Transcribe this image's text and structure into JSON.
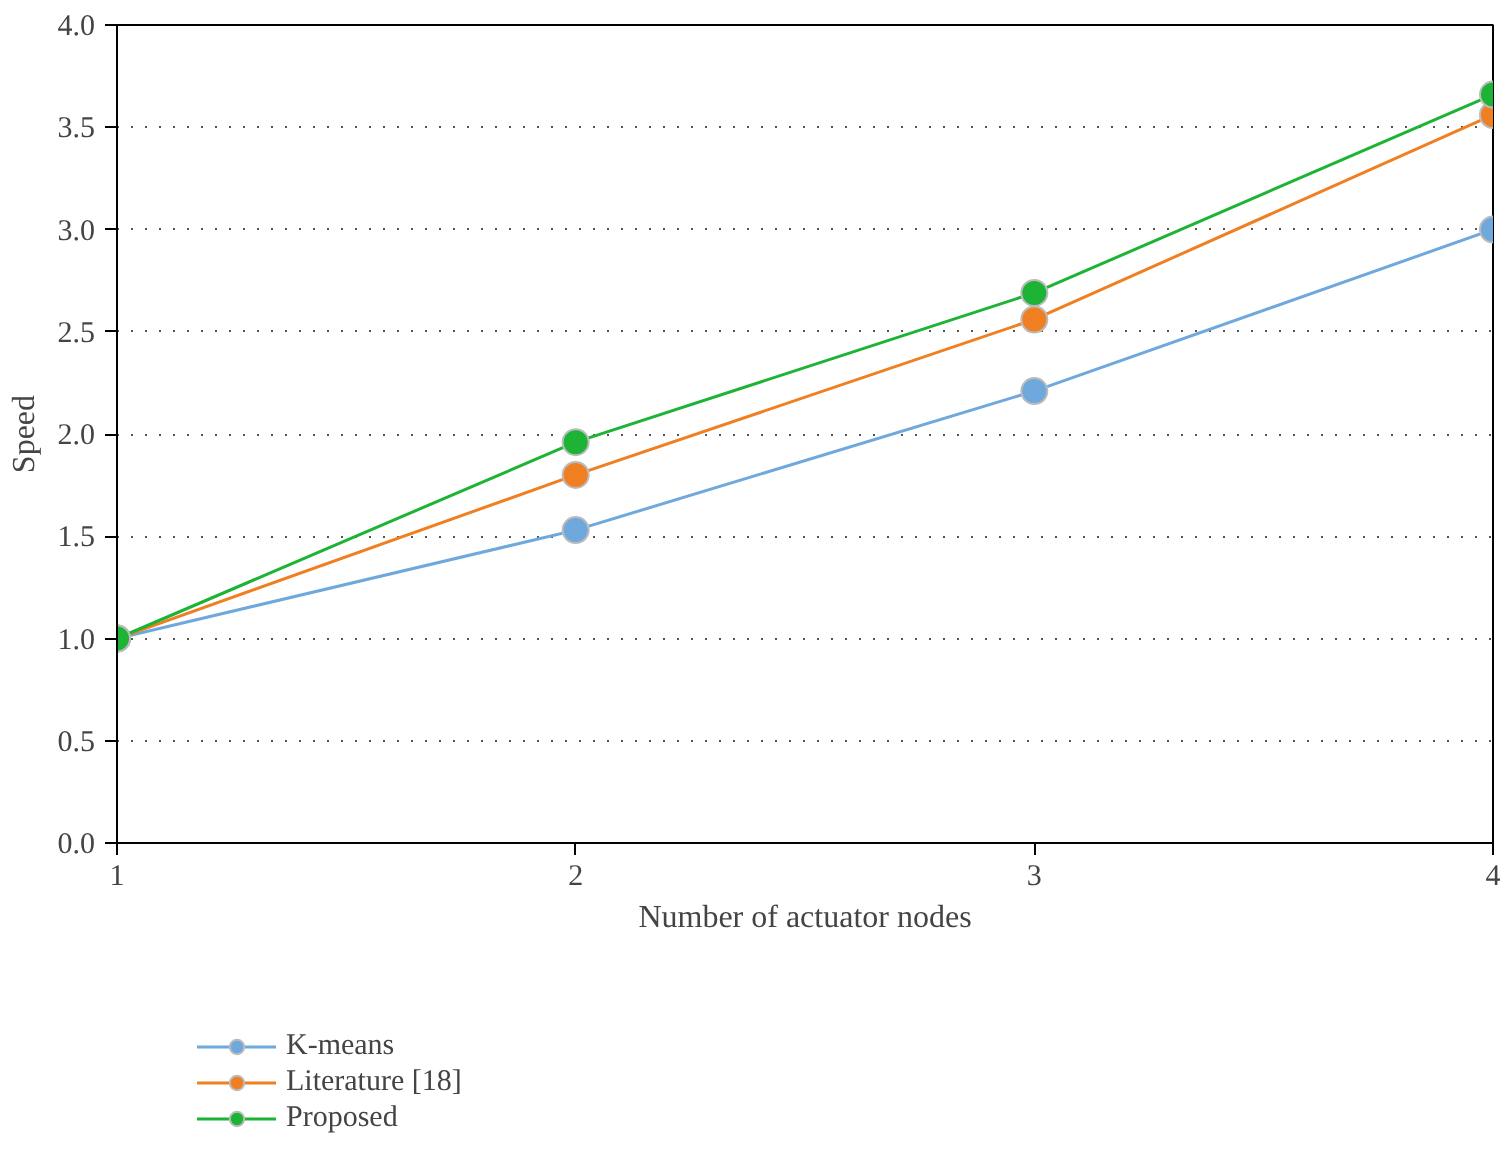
{
  "chart_data": {
    "type": "line",
    "xlabel": "Number of actuator nodes",
    "ylabel": "Speed",
    "x": [
      1,
      2,
      3,
      4
    ],
    "xlim": [
      1,
      4
    ],
    "xticks": [
      1,
      2,
      3,
      4
    ],
    "ylim": [
      0,
      4
    ],
    "yticks": [
      {
        "value": 0,
        "label": "0.0"
      },
      0.5,
      {
        "value": 1,
        "label": "1.0"
      },
      1.5,
      {
        "value": 2,
        "label": "2.0"
      },
      2.5,
      {
        "value": 3,
        "label": "3.0"
      },
      3.5,
      {
        "value": 4,
        "label": "4.0"
      }
    ],
    "grid": "y",
    "legend": "bottom left",
    "marker": "circle",
    "line_style": "solid",
    "series": [
      {
        "name": "K-means",
        "color": "#6fa8dc",
        "values": [
          1.0,
          1.53,
          2.21,
          3.0
        ]
      },
      {
        "name": "Literature [18]",
        "color": "#f07f22",
        "values": [
          1.0,
          1.8,
          2.56,
          3.56
        ]
      },
      {
        "name": "Proposed",
        "color": "#1db334",
        "values": [
          1.0,
          1.96,
          2.69,
          3.66
        ]
      }
    ]
  }
}
